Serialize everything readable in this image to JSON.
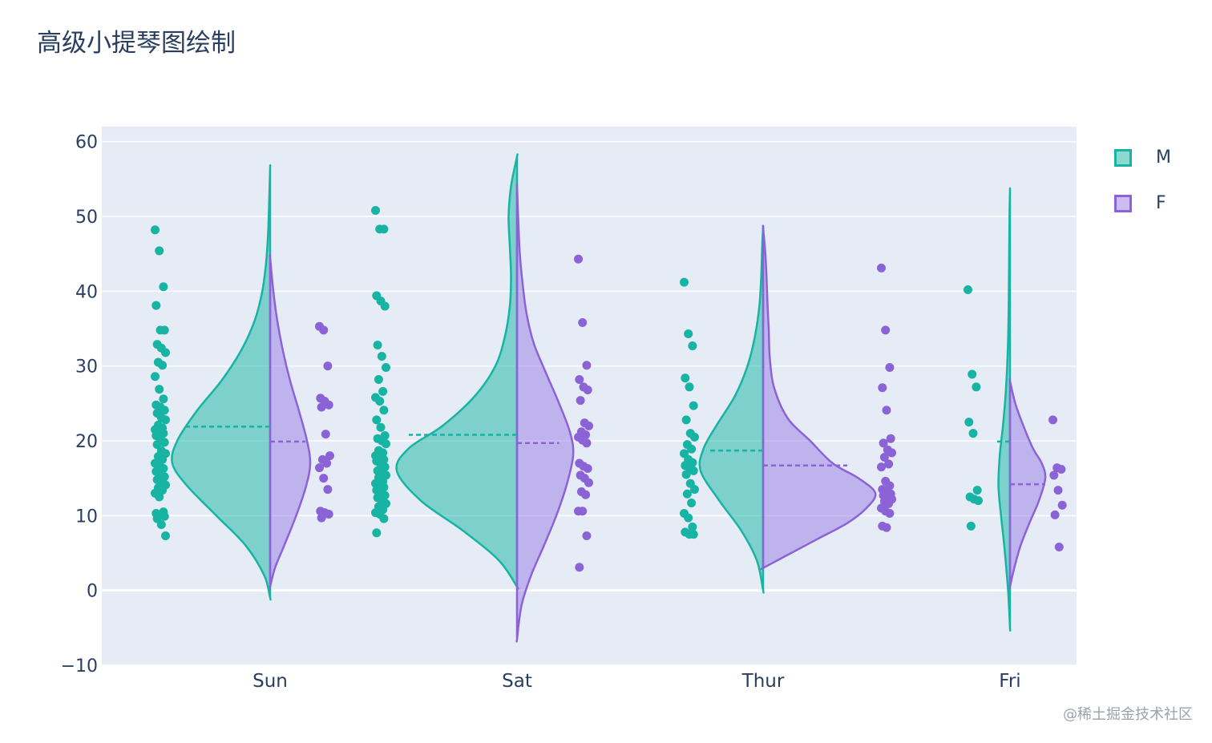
{
  "title": "高级小提琴图绘制",
  "watermark": "@稀土掘金技术社区",
  "colors": {
    "M": "#17b3a3",
    "M_fill": "rgba(23,179,163,0.5)",
    "F": "#8c63d6",
    "F_fill": "rgba(153,122,230,0.5)",
    "plot_bg": "#e5ecf6",
    "grid": "#ffffff",
    "text": "#2a3f5f"
  },
  "legend": [
    {
      "name": "M",
      "label": "M"
    },
    {
      "name": "F",
      "label": "F"
    }
  ],
  "chart_data": {
    "type": "violin",
    "title": "高级小提琴图绘制",
    "categories": [
      "Sun",
      "Sat",
      "Thur",
      "Fri"
    ],
    "ylim": [
      -10,
      62
    ],
    "yticks": [
      -10,
      0,
      10,
      20,
      30,
      40,
      50,
      60
    ],
    "ytick_labels": [
      "−10",
      "0",
      "10",
      "20",
      "30",
      "40",
      "50",
      "60"
    ],
    "side_note": "split violins: M on negative side, F on positive side, points shown outside",
    "series": [
      {
        "name": "M",
        "means": [
          21.9,
          20.8,
          18.7,
          19.9
        ],
        "violins": [
          {
            "range": [
              -1,
              56.5
            ],
            "profile": [
              [
                -1,
                0
              ],
              [
                2,
                0.06
              ],
              [
                6,
                0.25
              ],
              [
                10,
                0.55
              ],
              [
                14,
                0.85
              ],
              [
                17,
                1.0
              ],
              [
                20,
                0.95
              ],
              [
                24,
                0.75
              ],
              [
                28,
                0.5
              ],
              [
                32,
                0.3
              ],
              [
                36,
                0.16
              ],
              [
                40,
                0.08
              ],
              [
                44,
                0.04
              ],
              [
                48,
                0.02
              ],
              [
                52,
                0.01
              ],
              [
                56.5,
                0
              ]
            ]
          },
          {
            "range": [
              0.5,
              58
            ],
            "profile": [
              [
                0.5,
                0
              ],
              [
                4,
                0.15
              ],
              [
                8,
                0.45
              ],
              [
                12,
                0.8
              ],
              [
                16,
                1.0
              ],
              [
                19,
                0.9
              ],
              [
                22,
                0.62
              ],
              [
                26,
                0.35
              ],
              [
                30,
                0.18
              ],
              [
                34,
                0.1
              ],
              [
                38,
                0.06
              ],
              [
                42,
                0.05
              ],
              [
                46,
                0.06
              ],
              [
                50,
                0.07
              ],
              [
                54,
                0.05
              ],
              [
                58,
                0
              ]
            ]
          },
          {
            "range": [
              0,
              48.5
            ],
            "profile": [
              [
                0,
                0
              ],
              [
                4,
                0.1
              ],
              [
                8,
                0.35
              ],
              [
                12,
                0.7
              ],
              [
                16,
                1.0
              ],
              [
                19,
                0.95
              ],
              [
                22,
                0.75
              ],
              [
                26,
                0.45
              ],
              [
                30,
                0.25
              ],
              [
                34,
                0.13
              ],
              [
                38,
                0.06
              ],
              [
                42,
                0.03
              ],
              [
                46,
                0.015
              ],
              [
                48.5,
                0
              ]
            ]
          },
          {
            "range": [
              -5,
              53.5
            ],
            "profile": [
              [
                -5,
                0
              ],
              [
                0,
                0.15
              ],
              [
                6,
                0.45
              ],
              [
                10,
                0.7
              ],
              [
                14,
                0.9
              ],
              [
                18,
                0.8
              ],
              [
                22,
                0.55
              ],
              [
                26,
                0.35
              ],
              [
                30,
                0.22
              ],
              [
                34,
                0.14
              ],
              [
                38,
                0.1
              ],
              [
                42,
                0.08
              ],
              [
                46,
                0.06
              ],
              [
                50,
                0.04
              ],
              [
                53.5,
                0
              ]
            ]
          }
        ],
        "points": [
          [
            48.2,
            45.4,
            40.6,
            38.1,
            34.8,
            34.8,
            32.9,
            32.4,
            31.8,
            30.5,
            30.1,
            28.6,
            26.9,
            25.6,
            24.8,
            24.5,
            24.1,
            23.7,
            23.1,
            22.8,
            22.1,
            21.7,
            21.5,
            21.2,
            21.0,
            20.7,
            20.3,
            19.8,
            19.5,
            18.7,
            18.3,
            17.9,
            17.5,
            17.0,
            16.6,
            16.3,
            15.9,
            15.5,
            15.2,
            14.8,
            14.5,
            14.1,
            13.7,
            13.4,
            13.0,
            12.5,
            10.5,
            10.3,
            10.1,
            9.9,
            9.6,
            8.8,
            7.3
          ],
          [
            50.8,
            48.3,
            48.3,
            39.4,
            38.7,
            38.0,
            32.8,
            31.3,
            29.8,
            28.2,
            26.6,
            25.8,
            25.3,
            24.1,
            22.8,
            21.8,
            20.7,
            20.3,
            20.0,
            19.6,
            18.7,
            18.4,
            18.0,
            17.8,
            17.5,
            17.3,
            16.9,
            16.5,
            16.0,
            15.7,
            15.4,
            15.1,
            14.6,
            14.3,
            14.1,
            13.8,
            13.4,
            13.0,
            12.7,
            12.4,
            12.0,
            11.6,
            11.2,
            10.8,
            10.4,
            10.2,
            9.6,
            7.7
          ],
          [
            41.2,
            34.3,
            32.7,
            28.4,
            27.2,
            24.7,
            22.8,
            21.0,
            20.5,
            19.5,
            18.9,
            18.3,
            17.5,
            17.1,
            16.7,
            16.4,
            16.0,
            15.5,
            14.3,
            13.5,
            12.9,
            11.7,
            10.3,
            9.7,
            8.5,
            7.8,
            7.5,
            7.5
          ],
          [
            40.2,
            28.9,
            27.2,
            22.5,
            21.0,
            13.4,
            12.5,
            12.2,
            12.0,
            8.6
          ]
        ]
      },
      {
        "name": "F",
        "means": [
          19.9,
          19.7,
          16.7,
          14.2
        ],
        "violins": [
          {
            "range": [
              0.5,
              44.5
            ],
            "profile": [
              [
                0.5,
                0
              ],
              [
                3,
                0.12
              ],
              [
                6,
                0.35
              ],
              [
                10,
                0.65
              ],
              [
                14,
                0.9
              ],
              [
                17,
                1.0
              ],
              [
                20,
                0.92
              ],
              [
                24,
                0.72
              ],
              [
                28,
                0.5
              ],
              [
                32,
                0.32
              ],
              [
                36,
                0.18
              ],
              [
                40,
                0.08
              ],
              [
                44.5,
                0
              ]
            ]
          },
          {
            "range": [
              -6.5,
              54
            ],
            "profile": [
              [
                -6.5,
                0
              ],
              [
                -2,
                0.08
              ],
              [
                2,
                0.25
              ],
              [
                6,
                0.48
              ],
              [
                10,
                0.7
              ],
              [
                14,
                0.88
              ],
              [
                18,
                1.0
              ],
              [
                21,
                0.95
              ],
              [
                25,
                0.75
              ],
              [
                29,
                0.52
              ],
              [
                33,
                0.3
              ],
              [
                37,
                0.17
              ],
              [
                41,
                0.1
              ],
              [
                45,
                0.05
              ],
              [
                50,
                0.02
              ],
              [
                54,
                0
              ]
            ]
          },
          {
            "range": [
              3,
              48.5
            ],
            "profile": [
              [
                3,
                0
              ],
              [
                5,
                0.25
              ],
              [
                7,
                0.5
              ],
              [
                9,
                0.75
              ],
              [
                11,
                0.92
              ],
              [
                13,
                1.0
              ],
              [
                15,
                0.85
              ],
              [
                17,
                0.62
              ],
              [
                20,
                0.42
              ],
              [
                23,
                0.22
              ],
              [
                27,
                0.1
              ],
              [
                31,
                0.06
              ],
              [
                35,
                0.05
              ],
              [
                38,
                0.04
              ],
              [
                42,
                0.03
              ],
              [
                45,
                0.02
              ],
              [
                48.5,
                0
              ]
            ]
          },
          {
            "range": [
              0.5,
              28
            ],
            "profile": [
              [
                0.5,
                0
              ],
              [
                3,
                0.12
              ],
              [
                6,
                0.3
              ],
              [
                9,
                0.55
              ],
              [
                12,
                0.82
              ],
              [
                15,
                1.0
              ],
              [
                17,
                0.9
              ],
              [
                19,
                0.65
              ],
              [
                22,
                0.38
              ],
              [
                25,
                0.15
              ],
              [
                28,
                0
              ]
            ]
          }
        ],
        "points": [
          [
            35.3,
            34.8,
            30.0,
            25.7,
            25.3,
            24.8,
            24.5,
            20.9,
            18.0,
            17.5,
            17.0,
            16.4,
            15.0,
            13.5,
            10.6,
            10.4,
            10.2,
            9.7
          ],
          [
            44.3,
            35.8,
            30.1,
            28.2,
            27.2,
            26.8,
            25.4,
            22.4,
            22.0,
            21.2,
            20.8,
            20.5,
            20.1,
            19.7,
            17.0,
            16.6,
            16.3,
            15.4,
            15.0,
            14.4,
            13.2,
            12.8,
            10.6,
            10.6,
            7.3,
            3.1
          ],
          [
            43.1,
            34.8,
            29.8,
            27.1,
            24.1,
            20.3,
            19.7,
            18.8,
            18.4,
            17.8,
            16.9,
            16.5,
            14.6,
            14.0,
            13.5,
            13.2,
            12.9,
            12.7,
            12.5,
            12.2,
            11.9,
            11.6,
            11.0,
            10.6,
            10.3,
            8.6,
            8.4
          ],
          [
            22.8,
            16.4,
            16.2,
            15.4,
            13.4,
            11.4,
            10.1,
            5.8
          ]
        ]
      }
    ]
  }
}
